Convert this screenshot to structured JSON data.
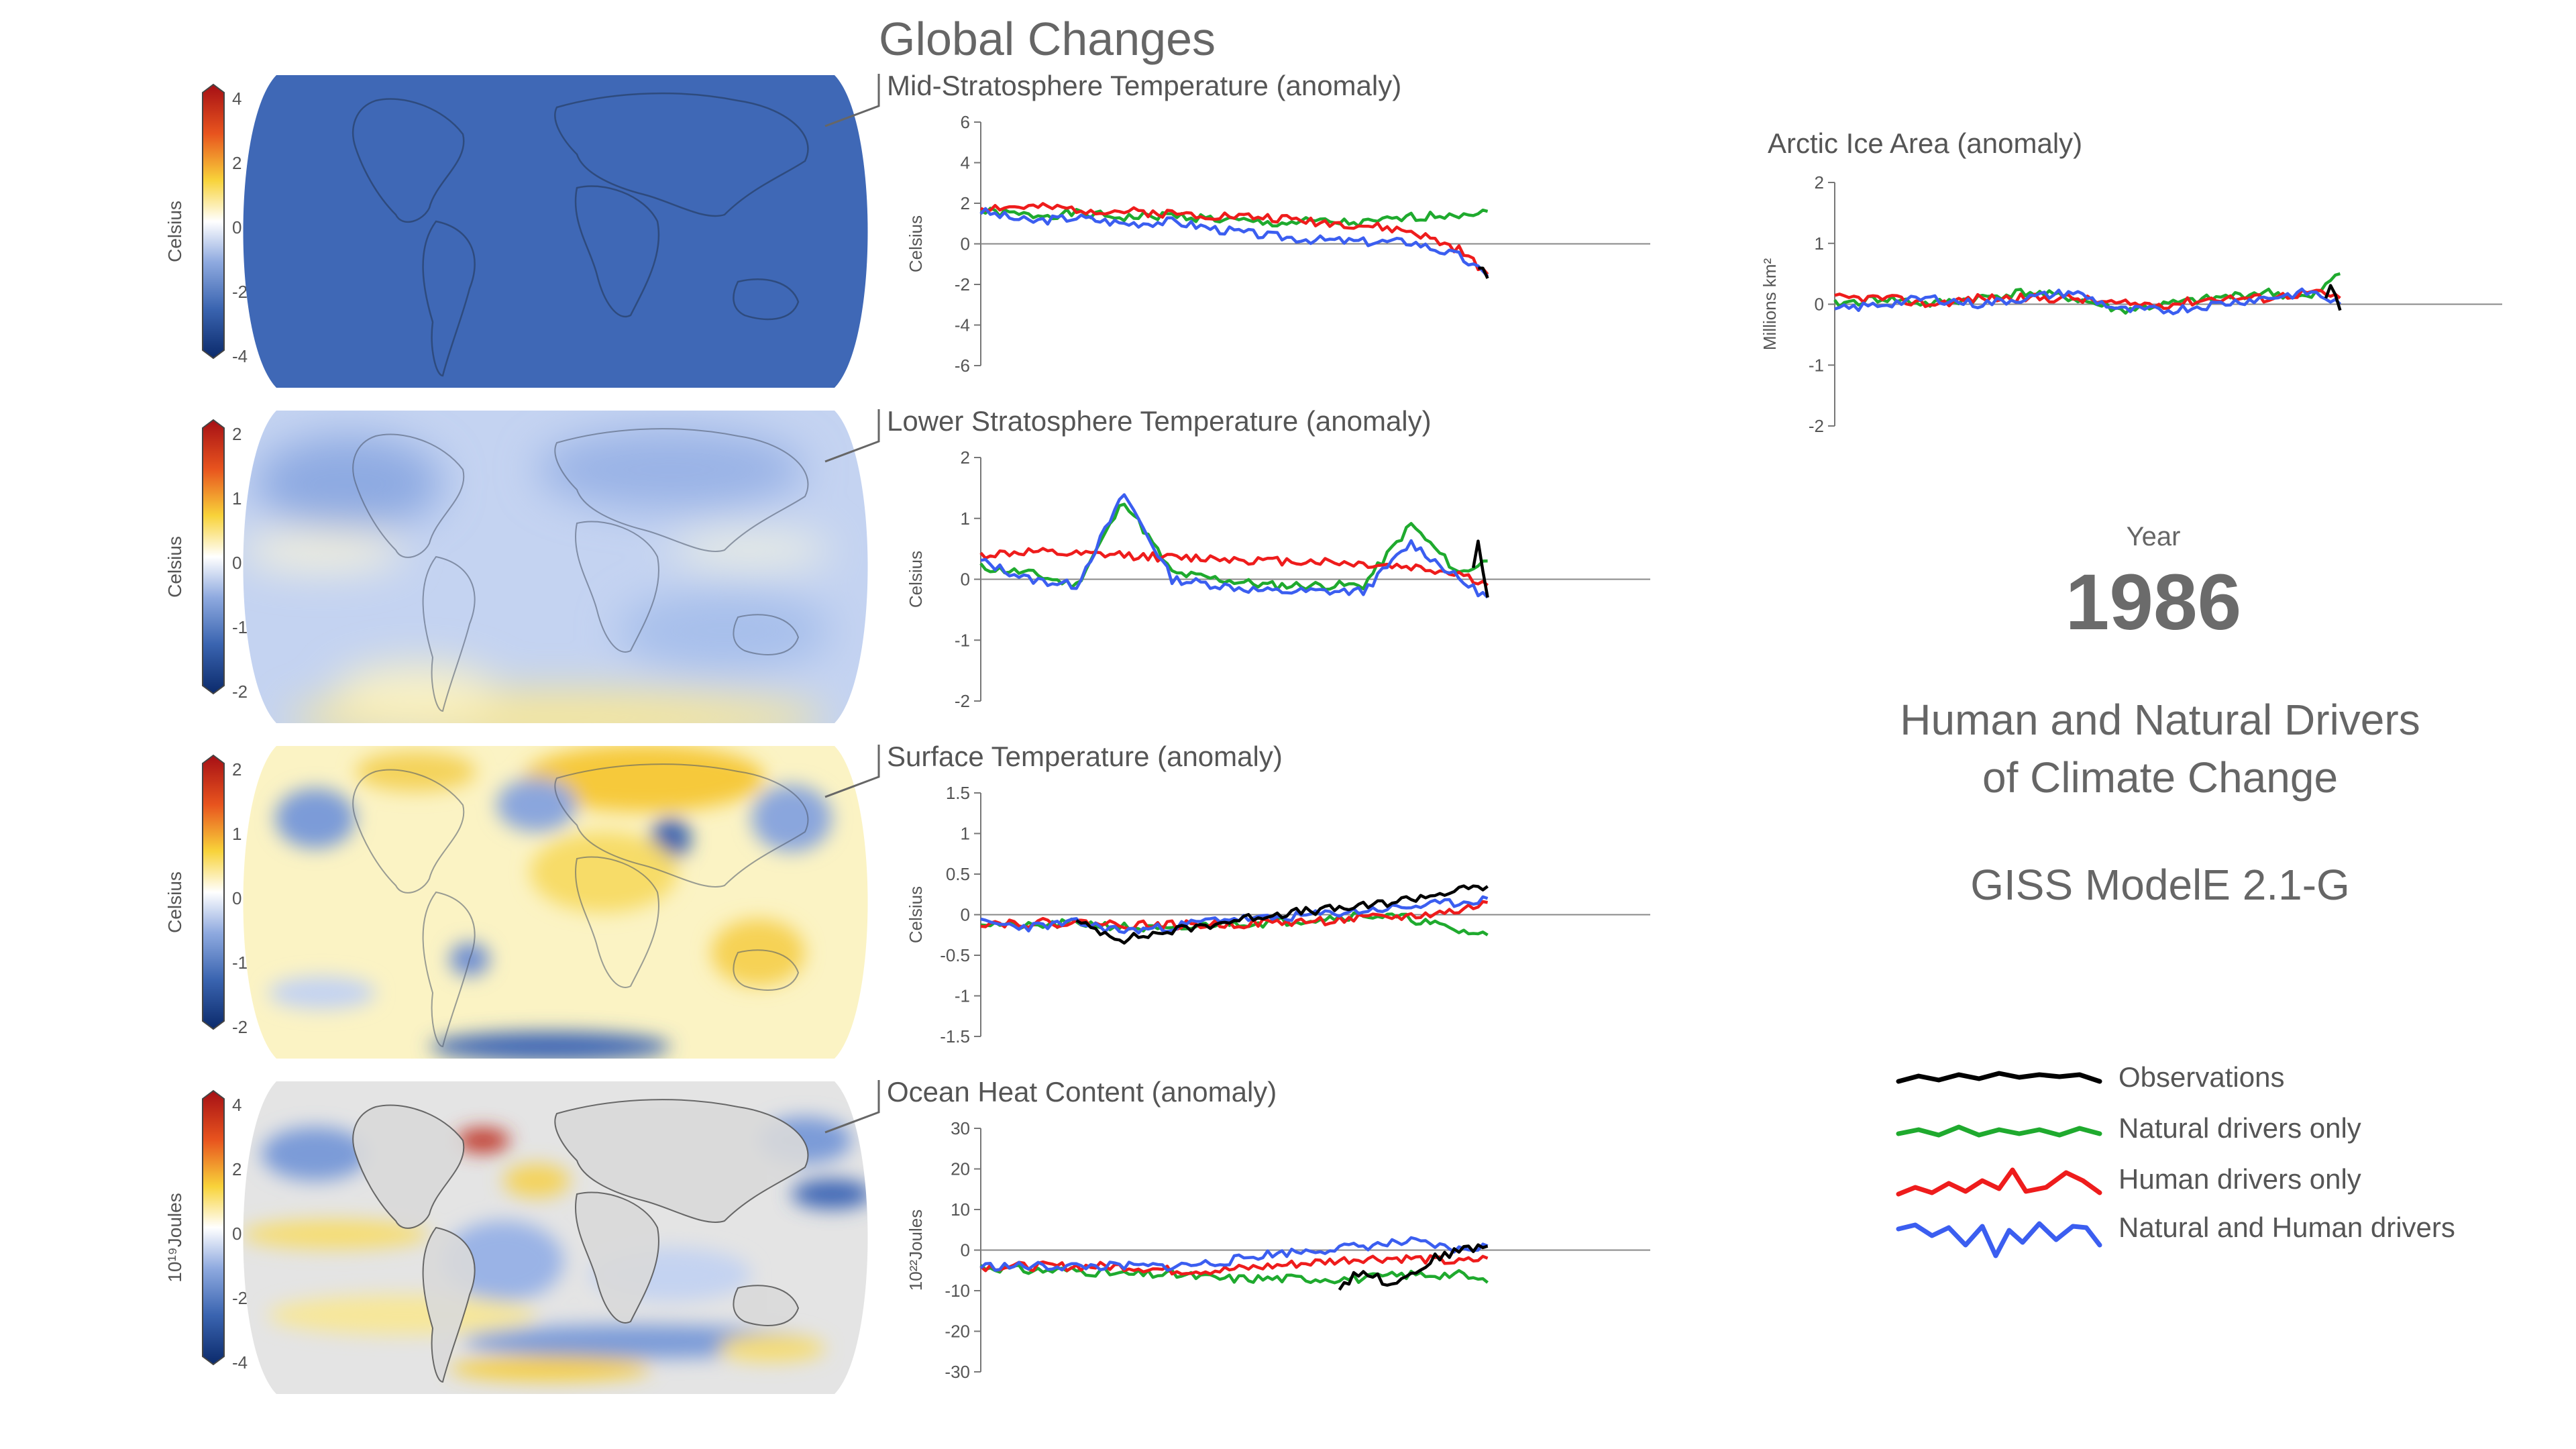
{
  "header": {
    "title": "Global Changes"
  },
  "year_block": {
    "label": "Year",
    "value": "1986"
  },
  "caption": {
    "line1": "Human and Natural Drivers",
    "line2": "of Climate Change",
    "model": "GISS ModelE 2.1-G"
  },
  "legend": {
    "items": [
      {
        "label": "Observations",
        "color": "#000000"
      },
      {
        "label": "Natural drivers only",
        "color": "#1faa2e"
      },
      {
        "label": "Human drivers only",
        "color": "#ee1c1c"
      },
      {
        "label": "Natural and Human drivers",
        "color": "#3b5ef0"
      }
    ]
  },
  "maps": [
    {
      "colorbar_ticks": [
        "4",
        "2",
        "0",
        "-2",
        "-4"
      ],
      "unit_label": "Celsius",
      "style": "uniform-blue"
    },
    {
      "colorbar_ticks": [
        "2",
        "1",
        "0",
        "-1",
        "-2"
      ],
      "unit_label": "Celsius",
      "style": "light-blue"
    },
    {
      "colorbar_ticks": [
        "2",
        "1",
        "0",
        "-1",
        "-2"
      ],
      "unit_label": "Celsius",
      "style": "warm-yellow"
    },
    {
      "colorbar_ticks": [
        "4",
        "2",
        "0",
        "-2",
        "-4"
      ],
      "unit_label": "10¹⁹Joules",
      "style": "grey-mixed"
    }
  ],
  "chart_data": [
    {
      "type": "line",
      "title": "Mid-Stratosphere Temperature (anomaly)",
      "ylabel": "Celsius",
      "ylim": [
        -6,
        6
      ],
      "yticks": [
        6,
        4,
        2,
        0,
        -2,
        -4,
        -6
      ],
      "x": [
        1880,
        1890,
        1900,
        1910,
        1920,
        1930,
        1940,
        1950,
        1960,
        1970,
        1980,
        1986
      ],
      "series": [
        {
          "name": "Natural drivers only",
          "color": "#1faa2e",
          "values": [
            1.6,
            1.4,
            1.5,
            1.3,
            1.4,
            1.2,
            1.0,
            1.1,
            1.0,
            1.3,
            1.5,
            1.6
          ]
        },
        {
          "name": "Human drivers only",
          "color": "#ee1c1c",
          "values": [
            1.8,
            1.8,
            1.7,
            1.6,
            1.5,
            1.4,
            1.3,
            1.1,
            0.9,
            0.6,
            -0.3,
            -1.5
          ]
        },
        {
          "name": "Natural and Human drivers",
          "color": "#3b5ef0",
          "values": [
            1.6,
            1.1,
            1.3,
            1.0,
            1.1,
            0.7,
            0.4,
            0.2,
            0.1,
            0.1,
            -0.6,
            -1.6
          ]
        },
        {
          "name": "Observations",
          "color": "#000000",
          "x": [
            1984,
            1985,
            1986
          ],
          "values": [
            -1.0,
            -1.3,
            -1.7
          ]
        }
      ]
    },
    {
      "type": "line",
      "title": "Lower Stratosphere Temperature (anomaly)",
      "ylabel": "Celsius",
      "ylim": [
        -2,
        2
      ],
      "yticks": [
        2,
        1,
        0,
        -1,
        -2
      ],
      "x": [
        1880,
        1890,
        1900,
        1910,
        1920,
        1930,
        1940,
        1950,
        1960,
        1970,
        1980,
        1986
      ],
      "series": [
        {
          "name": "Natural drivers only",
          "color": "#1faa2e",
          "values": [
            0.2,
            0.1,
            -0.1,
            1.3,
            0.1,
            0.0,
            -0.1,
            -0.1,
            -0.1,
            0.9,
            0.1,
            0.3
          ]
        },
        {
          "name": "Human drivers only",
          "color": "#ee1c1c",
          "values": [
            0.4,
            0.45,
            0.4,
            0.4,
            0.35,
            0.35,
            0.3,
            0.3,
            0.25,
            0.2,
            0.1,
            -0.1
          ]
        },
        {
          "name": "Natural and Human drivers",
          "color": "#3b5ef0",
          "values": [
            0.3,
            0.0,
            -0.1,
            1.4,
            0.0,
            -0.1,
            -0.2,
            -0.2,
            -0.2,
            0.6,
            0.0,
            -0.3
          ]
        },
        {
          "name": "Observations",
          "color": "#000000",
          "x": [
            1983,
            1984,
            1985,
            1986
          ],
          "values": [
            0.2,
            0.6,
            0.1,
            -0.3
          ]
        }
      ]
    },
    {
      "type": "line",
      "title": "Surface Temperature (anomaly)",
      "ylabel": "Celsius",
      "ylim": [
        -1.5,
        1.5
      ],
      "yticks": [
        1.5,
        1,
        0.5,
        0,
        -0.5,
        -1,
        -1.5
      ],
      "x": [
        1880,
        1890,
        1900,
        1910,
        1920,
        1930,
        1940,
        1950,
        1960,
        1970,
        1980,
        1986
      ],
      "series": [
        {
          "name": "Natural drivers only",
          "color": "#1faa2e",
          "values": [
            -0.1,
            -0.15,
            -0.1,
            -0.15,
            -0.2,
            -0.1,
            -0.1,
            -0.05,
            0.0,
            -0.05,
            -0.2,
            -0.25
          ]
        },
        {
          "name": "Human drivers only",
          "color": "#ee1c1c",
          "values": [
            -0.1,
            -0.1,
            -0.1,
            -0.12,
            -0.13,
            -0.12,
            -0.1,
            -0.08,
            -0.05,
            -0.02,
            0.05,
            0.15
          ]
        },
        {
          "name": "Natural and Human drivers",
          "color": "#3b5ef0",
          "values": [
            -0.1,
            -0.15,
            -0.1,
            -0.2,
            -0.15,
            -0.05,
            -0.05,
            0.0,
            0.05,
            0.1,
            0.15,
            0.2
          ]
        },
        {
          "name": "Observations",
          "color": "#000000",
          "x": [
            1900,
            1910,
            1920,
            1930,
            1940,
            1950,
            1960,
            1970,
            1980,
            1986
          ],
          "values": [
            -0.1,
            -0.3,
            -0.2,
            -0.1,
            0.0,
            0.05,
            0.1,
            0.2,
            0.3,
            0.35
          ]
        }
      ]
    },
    {
      "type": "line",
      "title": "Ocean Heat Content (anomaly)",
      "ylabel": "10²²Joules",
      "ylim": [
        -30,
        30
      ],
      "yticks": [
        30,
        20,
        10,
        0,
        -10,
        -20,
        -30
      ],
      "x": [
        1880,
        1890,
        1900,
        1910,
        1920,
        1930,
        1940,
        1950,
        1960,
        1970,
        1980,
        1986
      ],
      "series": [
        {
          "name": "Natural drivers only",
          "color": "#1faa2e",
          "values": [
            -4,
            -5,
            -5,
            -6,
            -6,
            -7,
            -7,
            -7,
            -7,
            -6,
            -6,
            -8
          ]
        },
        {
          "name": "Human drivers only",
          "color": "#ee1c1c",
          "values": [
            -4,
            -4,
            -4,
            -4,
            -5,
            -5,
            -4,
            -3,
            -2,
            -2,
            -3,
            -2
          ]
        },
        {
          "name": "Natural and Human drivers",
          "color": "#3b5ef0",
          "values": [
            -4,
            -4,
            -4,
            -4,
            -4,
            -3,
            -1,
            0,
            1,
            2,
            0,
            1
          ]
        },
        {
          "name": "Observations",
          "color": "#000000",
          "x": [
            1955,
            1960,
            1965,
            1970,
            1975,
            1980,
            1986
          ],
          "values": [
            -9,
            -5,
            -8,
            -6,
            -2,
            0,
            1
          ]
        }
      ]
    },
    {
      "type": "line",
      "title": "Arctic Ice Area (anomaly)",
      "ylabel": "Millions km²",
      "ylim": [
        -2,
        2
      ],
      "yticks": [
        2,
        1,
        0,
        -1,
        -2
      ],
      "x": [
        1880,
        1890,
        1900,
        1910,
        1920,
        1930,
        1940,
        1950,
        1960,
        1970,
        1980,
        1986
      ],
      "series": [
        {
          "name": "Natural drivers only",
          "color": "#1faa2e",
          "values": [
            0.0,
            0.1,
            0.0,
            0.1,
            0.2,
            0.1,
            -0.1,
            0.0,
            0.1,
            0.2,
            0.1,
            0.5
          ]
        },
        {
          "name": "Human drivers only",
          "color": "#ee1c1c",
          "values": [
            0.1,
            0.1,
            0.0,
            0.1,
            0.1,
            0.1,
            0.0,
            0.0,
            0.1,
            0.1,
            0.2,
            0.1
          ]
        },
        {
          "name": "Natural and Human drivers",
          "color": "#3b5ef0",
          "values": [
            -0.1,
            0.0,
            0.1,
            0.0,
            0.1,
            0.2,
            -0.1,
            -0.1,
            0.0,
            0.1,
            0.2,
            0.0
          ]
        },
        {
          "name": "Observations",
          "color": "#000000",
          "x": [
            1983,
            1984,
            1985,
            1986
          ],
          "values": [
            0.1,
            0.3,
            0.2,
            -0.1
          ]
        }
      ]
    }
  ]
}
